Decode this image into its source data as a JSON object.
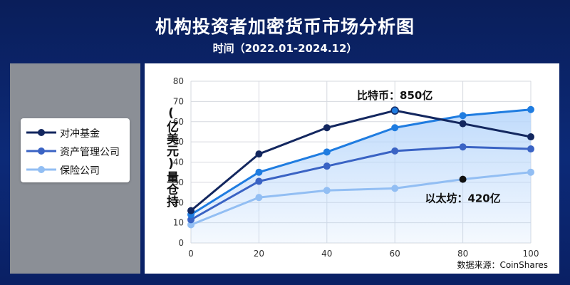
{
  "header": {
    "title": "机构投资者加密货币市场分析图",
    "subtitle": "时间（2022.01-2024.12）"
  },
  "colors": {
    "background": "#0c2a78",
    "hedge": "#13275f",
    "asset": "#3a63c4",
    "insurance": "#92bef3",
    "top_line": "#1f7ce0",
    "area_fill": "#b9d7fb"
  },
  "legend": {
    "items": [
      {
        "label": "对冲基金",
        "color": "#13275f"
      },
      {
        "label": "资产管理公司",
        "color": "#3a63c4"
      },
      {
        "label": "保险公司",
        "color": "#92bef3"
      }
    ]
  },
  "chart_data": {
    "type": "line",
    "x": [
      0,
      20,
      40,
      60,
      80,
      100
    ],
    "xlim": [
      0,
      100
    ],
    "ylim": [
      0,
      80
    ],
    "xticks": [
      "0",
      "20",
      "40",
      "60",
      "80",
      "100"
    ],
    "yticks": [
      "0",
      "10",
      "20",
      "30",
      "40",
      "50",
      "60",
      "70",
      "80"
    ],
    "ylabel": "(亿美元)量仓持",
    "grid": true,
    "legend_position": "left",
    "series": [
      {
        "name": "对冲基金",
        "values": [
          16,
          44,
          57,
          65.5,
          59,
          52.5
        ]
      },
      {
        "name": "资产管理公司",
        "values": [
          11.5,
          30.5,
          38,
          45.5,
          47.5,
          46.5
        ]
      },
      {
        "name": "保险公司",
        "values": [
          9,
          22.5,
          26,
          27,
          31.5,
          35
        ]
      },
      {
        "name": "",
        "values": [
          14,
          35,
          45,
          57,
          63,
          66
        ],
        "area_fill": true
      }
    ],
    "annotations": [
      {
        "text": "比特币：850亿",
        "x": 60,
        "y": 65.5
      },
      {
        "text": "以太坊：420亿",
        "x": 80,
        "y": 31.5
      }
    ],
    "source": "数据来源：CoinShares"
  }
}
